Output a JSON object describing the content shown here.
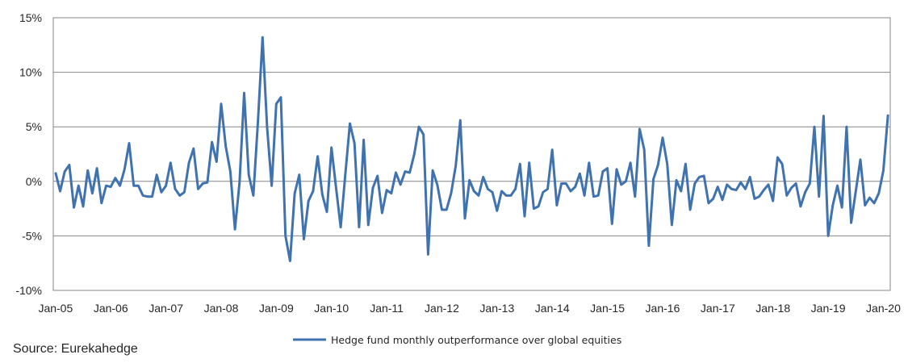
{
  "chart_data": {
    "type": "line",
    "title": "",
    "xlabel": "",
    "ylabel": "",
    "ylim": [
      -10,
      15
    ],
    "ytick_values": [
      -10,
      -5,
      0,
      5,
      10,
      15
    ],
    "ytick_labels": [
      "-10%",
      "-5%",
      "0%",
      "5%",
      "10%",
      "15%"
    ],
    "xtick_labels": [
      "Jan-05",
      "Jan-06",
      "Jan-07",
      "Jan-08",
      "Jan-09",
      "Jan-10",
      "Jan-11",
      "Jan-12",
      "Jan-13",
      "Jan-14",
      "Jan-15",
      "Jan-16",
      "Jan-17",
      "Jan-18",
      "Jan-19",
      "Jan-20"
    ],
    "x_start": "Jan-05",
    "x_frequency": "monthly",
    "grid": true,
    "legend_position": "bottom",
    "colors": {
      "line": "#3f72af",
      "grid": "#868686",
      "axis": "#868686"
    },
    "series": [
      {
        "name": "Hedge fund monthly outperformance over global equities",
        "values": [
          0.8,
          -0.9,
          0.9,
          1.5,
          -2.4,
          -0.4,
          -2.3,
          1.0,
          -1.1,
          1.2,
          -2.0,
          -0.4,
          -0.5,
          0.3,
          -0.4,
          1.1,
          3.5,
          -0.4,
          -0.4,
          -1.3,
          -1.4,
          -1.4,
          0.6,
          -1.0,
          -0.4,
          1.7,
          -0.7,
          -1.3,
          -1.0,
          1.7,
          3.0,
          -0.7,
          -0.2,
          -0.1,
          3.6,
          1.8,
          7.1,
          3.2,
          0.9,
          -4.4,
          -0.1,
          8.1,
          0.6,
          -1.3,
          5.5,
          13.2,
          5.0,
          -0.4,
          7.1,
          7.7,
          -5.0,
          -7.3,
          -1.1,
          0.6,
          -5.3,
          -1.8,
          -0.9,
          2.3,
          -1.2,
          -2.8,
          3.1,
          -0.6,
          -4.2,
          0.6,
          5.3,
          3.5,
          -4.2,
          3.8,
          -4.0,
          -0.6,
          0.5,
          -2.9,
          -0.8,
          -1.1,
          0.8,
          -0.3,
          0.9,
          0.8,
          2.5,
          5.0,
          4.3,
          -6.7,
          1.0,
          -0.3,
          -2.6,
          -2.6,
          -1.1,
          1.4,
          5.6,
          -3.4,
          0.1,
          -0.9,
          -1.3,
          0.4,
          -0.7,
          -1.0,
          -2.7,
          -0.9,
          -1.3,
          -1.3,
          -0.7,
          1.6,
          -3.2,
          1.7,
          -2.5,
          -2.3,
          -1.0,
          -0.7,
          2.9,
          -2.2,
          -0.2,
          -0.2,
          -0.9,
          -0.5,
          0.7,
          -1.3,
          1.7,
          -1.4,
          -1.3,
          0.9,
          1.2,
          -3.9,
          1.1,
          -0.3,
          0.0,
          1.7,
          -1.4,
          4.8,
          2.9,
          -5.9,
          0.2,
          1.5,
          4.0,
          1.6,
          -4.0,
          0.1,
          -0.9,
          1.6,
          -2.6,
          -0.2,
          0.4,
          0.5,
          -2.0,
          -1.6,
          -0.5,
          -1.7,
          -0.3,
          -0.7,
          -0.8,
          -0.1,
          -0.7,
          0.4,
          -1.6,
          -1.4,
          -0.8,
          -0.3,
          -1.8,
          2.2,
          1.6,
          -1.3,
          -0.6,
          -0.2,
          -2.3,
          -1.0,
          -0.2,
          5.0,
          -1.4,
          6.0,
          -5.0,
          -2.2,
          -0.4,
          -2.4,
          5.0,
          -3.8,
          -0.9,
          2.0,
          -2.2,
          -1.5,
          -2.0,
          -1.1,
          1.0,
          6.1
        ]
      }
    ],
    "source": "Source: Eurekahedge"
  }
}
